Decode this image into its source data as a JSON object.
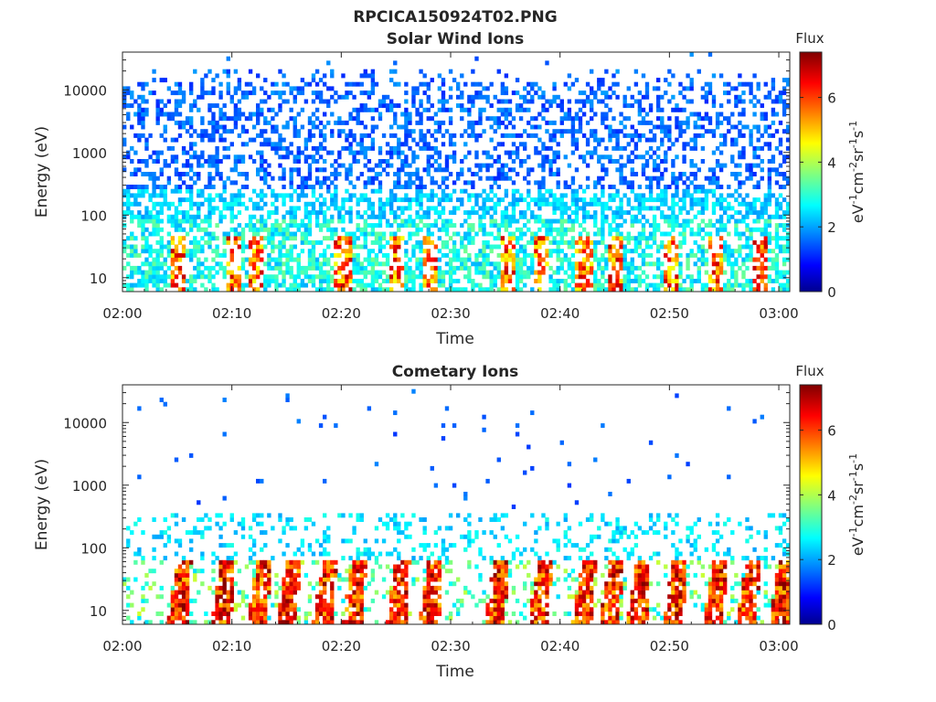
{
  "figure": {
    "title": "RPCICA150924T02.PNG"
  },
  "chart_data": [
    {
      "type": "heatmap",
      "title": "Solar Wind Ions",
      "xlabel": "Time",
      "ylabel": "Energy (eV)",
      "x_ticks": [
        "02:00",
        "02:10",
        "02:20",
        "02:30",
        "02:40",
        "02:50",
        "03:00"
      ],
      "x_range": [
        "02:00",
        "03:01"
      ],
      "y_scale": "log",
      "y_ticks": [
        "10",
        "100",
        "1000",
        "10000"
      ],
      "y_range": [
        6,
        40000
      ],
      "colorbar": {
        "title": "Flux",
        "label_parts": [
          "eV",
          "-1",
          "cm",
          "-2",
          "sr",
          "-1",
          "s",
          "-1"
        ],
        "ticks": [
          "0",
          "2",
          "4",
          "6"
        ],
        "range": [
          0,
          7.4
        ],
        "colormap": "jet"
      },
      "description_of_data": "Dense scattered flux across 6 eV to 20 keV; blue (~1-2) above 200 eV, cyan/green (~2-4) 20-200 eV, intermittent yellow-red bursts (~5-7) below 40 eV at roughly 02:05, 02:10, 02:12, 02:20, 02:25, 02:28, 02:35, 02:38, 02:42, 02:45, 02:50, 02:54, 02:58"
    },
    {
      "type": "heatmap",
      "title": "Cometary Ions",
      "xlabel": "Time",
      "ylabel": "Energy (eV)",
      "x_ticks": [
        "02:00",
        "02:10",
        "02:20",
        "02:30",
        "02:40",
        "02:50",
        "03:00"
      ],
      "x_range": [
        "02:00",
        "03:01"
      ],
      "y_scale": "log",
      "y_ticks": [
        "10",
        "100",
        "1000",
        "10000"
      ],
      "y_range": [
        6,
        40000
      ],
      "colorbar": {
        "title": "Flux",
        "label_parts": [
          "eV",
          "-1",
          "cm",
          "-2",
          "sr",
          "-1",
          "s",
          "-1"
        ],
        "ticks": [
          "0",
          "2",
          "4",
          "6"
        ],
        "range": [
          0,
          7.4
        ],
        "colormap": "jet"
      },
      "description_of_data": "Sparse blue points above 300 eV; cyan band 60-200 eV; strong orange-red bursts (~6-7) below 40 eV at roughly 02:05, 02:09, 02:12, 02:15, 02:18, 02:21, 02:25, 02:28, 02:34, 02:38, 02:42, 02:44, 02:47, 02:50, 02:54, 02:57, 03:00"
    }
  ]
}
